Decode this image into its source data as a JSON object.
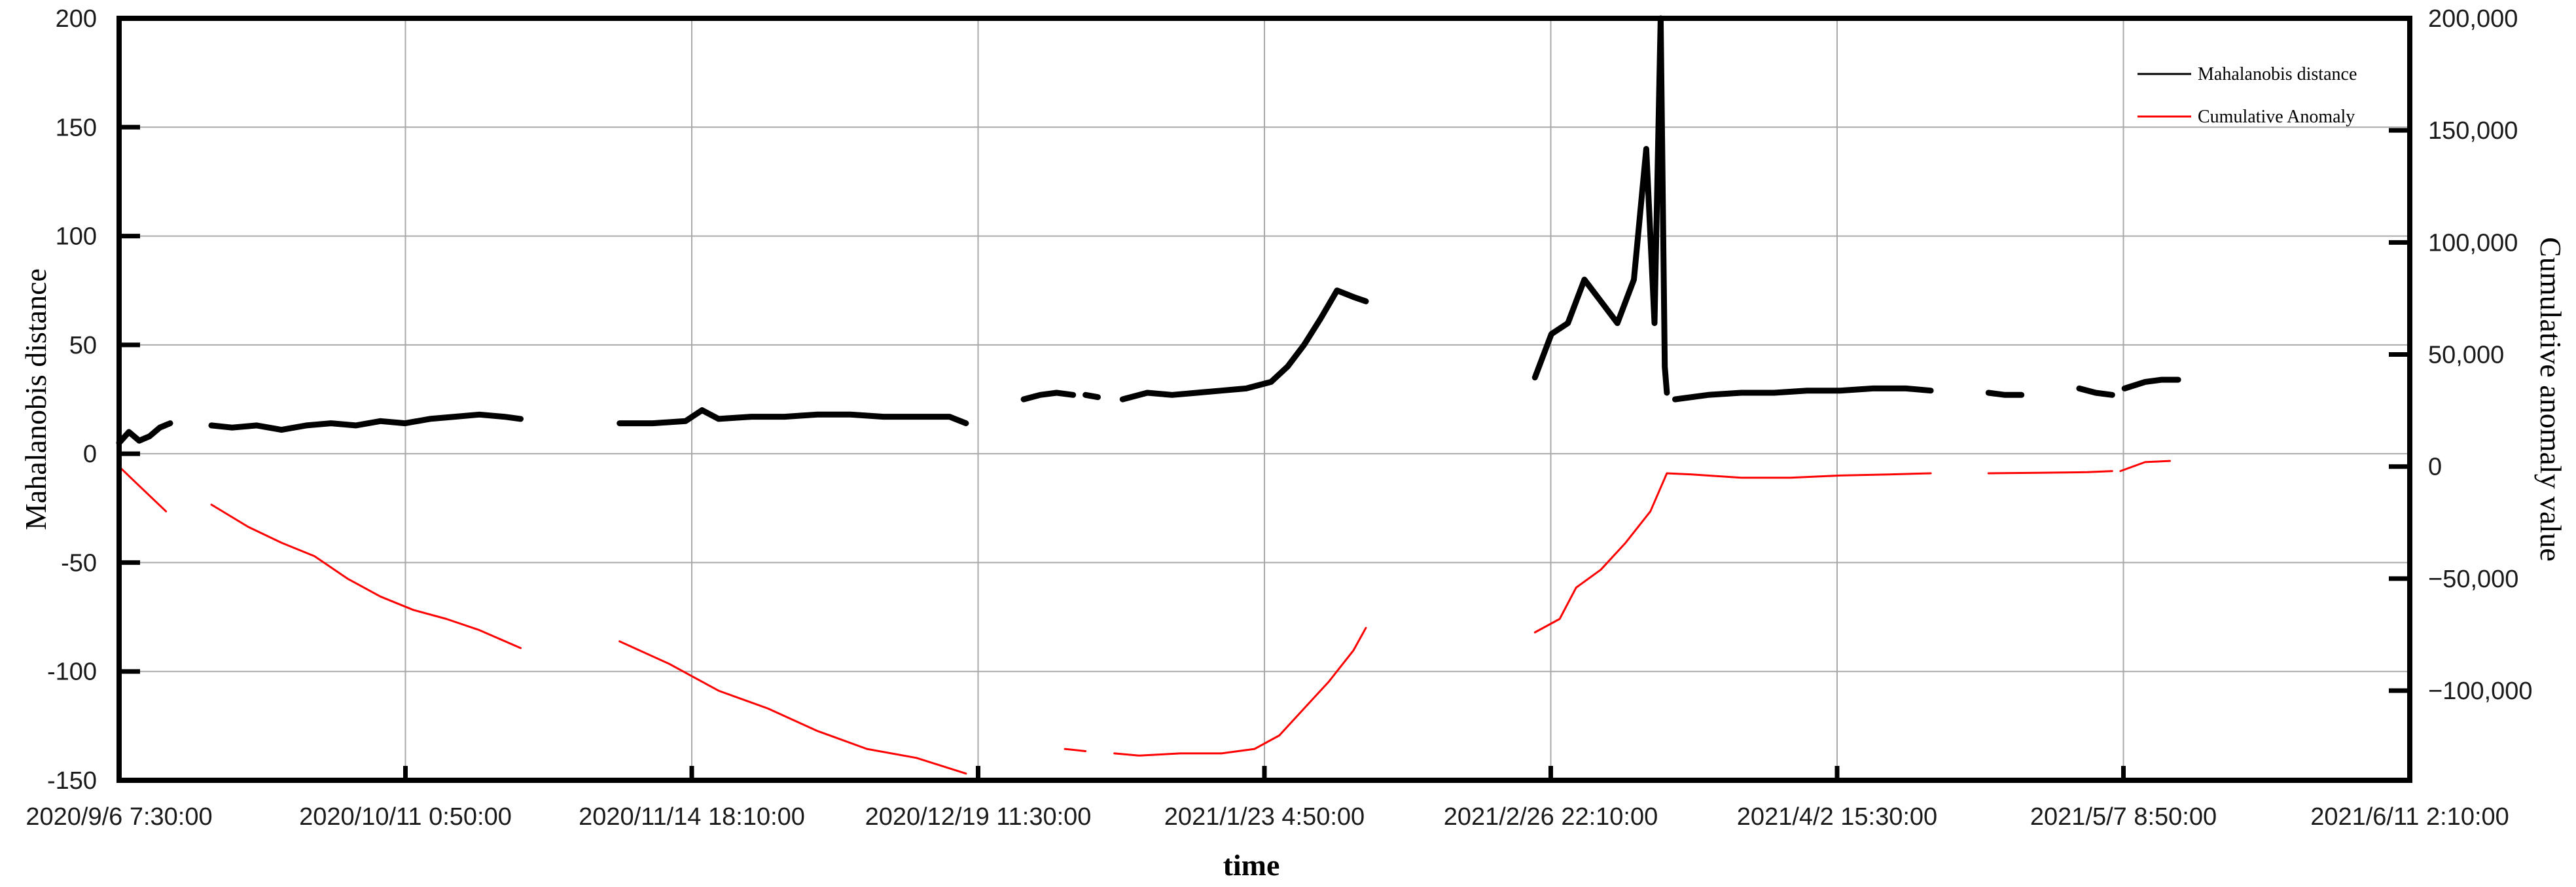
{
  "chart_data": {
    "type": "line",
    "title": "",
    "xlabel": "time",
    "ylabel": "Mahalanobis distance",
    "y2label": "Cumulative anomaly value",
    "x_ticks": [
      "2020/9/6  7:30:00",
      "2020/10/11  0:50:00",
      "2020/11/14  18:10:00",
      "2020/12/19  11:30:00",
      "2021/1/23  4:50:00",
      "2021/2/26  22:10:00",
      "2021/4/2  15:30:00",
      "2021/5/7  8:50:00",
      "2021/6/11  2:10:00"
    ],
    "xlim": [
      "2020-09-06 07:30",
      "2021-06-11 02:10"
    ],
    "ylim": [
      -150,
      200
    ],
    "y_ticks": [
      "200",
      "150",
      "100",
      "50",
      "0",
      "-50",
      "-100",
      "-150"
    ],
    "y2lim": [
      -140000,
      200000
    ],
    "y2_ticks": [
      "200,000",
      "150,000",
      "100,000",
      "50,000",
      "0",
      "−50,000",
      "−100,000"
    ],
    "legend": {
      "placement": "top-right",
      "entries": [
        "Mahalanobis distance",
        "Cumulative Anomaly"
      ]
    },
    "grid": true,
    "series": [
      {
        "name": "Mahalanobis distance",
        "axis": "left",
        "color": "#000000",
        "segments": [
          [
            [
              "2020-09-06 07:30",
              5
            ],
            [
              "2020-09-07 12:00",
              10
            ],
            [
              "2020-09-08 18:00",
              6
            ],
            [
              "2020-09-10 00:00",
              8
            ],
            [
              "2020-09-11 06:00",
              12
            ],
            [
              "2020-09-12 12:00",
              14
            ]
          ],
          [
            [
              "2020-09-17 12:00",
              13
            ],
            [
              "2020-09-20 00:00",
              12
            ],
            [
              "2020-09-23 00:00",
              13
            ],
            [
              "2020-09-26 00:00",
              11
            ],
            [
              "2020-09-29 00:00",
              13
            ],
            [
              "2020-10-02 00:00",
              14
            ],
            [
              "2020-10-05 00:00",
              13
            ],
            [
              "2020-10-08 00:00",
              15
            ],
            [
              "2020-10-11 00:00",
              14
            ],
            [
              "2020-10-14 00:00",
              16
            ],
            [
              "2020-10-17 00:00",
              17
            ],
            [
              "2020-10-20 00:00",
              18
            ],
            [
              "2020-10-23 00:00",
              17
            ],
            [
              "2020-10-25 00:00",
              16
            ]
          ],
          [
            [
              "2020-11-06 00:00",
              14
            ],
            [
              "2020-11-10 00:00",
              14
            ],
            [
              "2020-11-14 00:00",
              15
            ],
            [
              "2020-11-16 00:00",
              20
            ],
            [
              "2020-11-18 00:00",
              16
            ],
            [
              "2020-11-22 00:00",
              17
            ],
            [
              "2020-11-26 00:00",
              17
            ],
            [
              "2020-11-30 00:00",
              18
            ],
            [
              "2020-12-04 00:00",
              18
            ],
            [
              "2020-12-08 00:00",
              17
            ],
            [
              "2020-12-12 00:00",
              17
            ],
            [
              "2020-12-16 00:00",
              17
            ],
            [
              "2020-12-18 00:00",
              14
            ]
          ],
          [
            [
              "2020-12-25 00:00",
              25
            ],
            [
              "2020-12-27 00:00",
              27
            ],
            [
              "2020-12-29 00:00",
              28
            ],
            [
              "2020-12-31 00:00",
              27
            ]
          ],
          [
            [
              "2021-01-01 12:00",
              27
            ],
            [
              "2021-01-03 00:00",
              26
            ]
          ],
          [
            [
              "2021-01-06 00:00",
              25
            ],
            [
              "2021-01-09 00:00",
              28
            ],
            [
              "2021-01-12 00:00",
              27
            ],
            [
              "2021-01-15 00:00",
              28
            ],
            [
              "2021-01-18 00:00",
              29
            ],
            [
              "2021-01-21 00:00",
              30
            ],
            [
              "2021-01-24 00:00",
              33
            ],
            [
              "2021-01-26 00:00",
              40
            ],
            [
              "2021-01-28 00:00",
              50
            ],
            [
              "2021-01-30 00:00",
              62
            ],
            [
              "2021-02-01 00:00",
              75
            ],
            [
              "2021-02-03 00:00",
              72
            ],
            [
              "2021-02-04 12:00",
              70
            ]
          ],
          [
            [
              "2021-02-25 00:00",
              35
            ],
            [
              "2021-02-27 00:00",
              55
            ],
            [
              "2021-03-01 00:00",
              60
            ],
            [
              "2021-03-03 00:00",
              80
            ],
            [
              "2021-03-05 00:00",
              70
            ],
            [
              "2021-03-07 00:00",
              60
            ],
            [
              "2021-03-09 00:00",
              80
            ],
            [
              "2021-03-10 12:00",
              140
            ],
            [
              "2021-03-11 12:00",
              60
            ],
            [
              "2021-03-12 06:00",
              200
            ],
            [
              "2021-03-12 18:00",
              40
            ],
            [
              "2021-03-13 00:00",
              28
            ]
          ],
          [
            [
              "2021-03-14 00:00",
              25
            ],
            [
              "2021-03-18 00:00",
              27
            ],
            [
              "2021-03-22 00:00",
              28
            ],
            [
              "2021-03-26 00:00",
              28
            ],
            [
              "2021-03-30 00:00",
              29
            ],
            [
              "2021-04-03 00:00",
              29
            ],
            [
              "2021-04-07 00:00",
              30
            ],
            [
              "2021-04-11 00:00",
              30
            ],
            [
              "2021-04-14 00:00",
              29
            ]
          ],
          [
            [
              "2021-04-21 00:00",
              28
            ],
            [
              "2021-04-23 00:00",
              27
            ],
            [
              "2021-04-25 00:00",
              27
            ]
          ],
          [
            [
              "2021-05-02 00:00",
              30
            ],
            [
              "2021-05-04 00:00",
              28
            ],
            [
              "2021-05-06 00:00",
              27
            ]
          ],
          [
            [
              "2021-05-07 12:00",
              30
            ],
            [
              "2021-05-10 00:00",
              33
            ],
            [
              "2021-05-12 00:00",
              34
            ],
            [
              "2021-05-14 00:00",
              34
            ]
          ]
        ]
      },
      {
        "name": "Cumulative Anomaly",
        "axis": "right",
        "color": "#ff0000",
        "segments": [
          [
            [
              "2020-09-06 07:30",
              0
            ],
            [
              "2020-09-08 00:00",
              -6000
            ],
            [
              "2020-09-10 00:00",
              -13000
            ],
            [
              "2020-09-12 00:00",
              -20000
            ]
          ],
          [
            [
              "2020-09-17 12:00",
              -17000
            ],
            [
              "2020-09-22 00:00",
              -27000
            ],
            [
              "2020-09-26 00:00",
              -34000
            ],
            [
              "2020-09-30 00:00",
              -40000
            ],
            [
              "2020-10-04 00:00",
              -50000
            ],
            [
              "2020-10-08 00:00",
              -58000
            ],
            [
              "2020-10-12 00:00",
              -64000
            ],
            [
              "2020-10-16 00:00",
              -68000
            ],
            [
              "2020-10-20 00:00",
              -73000
            ],
            [
              "2020-10-25 00:00",
              -81000
            ]
          ],
          [
            [
              "2020-11-06 00:00",
              -78000
            ],
            [
              "2020-11-12 00:00",
              -88000
            ],
            [
              "2020-11-18 00:00",
              -100000
            ],
            [
              "2020-11-24 00:00",
              -108000
            ],
            [
              "2020-11-30 00:00",
              -118000
            ],
            [
              "2020-12-06 00:00",
              -126000
            ],
            [
              "2020-12-12 00:00",
              -130000
            ],
            [
              "2020-12-18 00:00",
              -137000
            ]
          ],
          [
            [
              "2020-12-30 00:00",
              -126000
            ],
            [
              "2021-01-01 12:00",
              -127000
            ]
          ],
          [
            [
              "2021-01-05 00:00",
              -128000
            ],
            [
              "2021-01-08 00:00",
              -129000
            ],
            [
              "2021-01-13 00:00",
              -128000
            ],
            [
              "2021-01-18 00:00",
              -128000
            ],
            [
              "2021-01-22 00:00",
              -126000
            ],
            [
              "2021-01-25 00:00",
              -120000
            ],
            [
              "2021-01-28 00:00",
              -108000
            ],
            [
              "2021-01-31 00:00",
              -96000
            ],
            [
              "2021-02-03 00:00",
              -82000
            ],
            [
              "2021-02-04 12:00",
              -72000
            ]
          ],
          [
            [
              "2021-02-25 00:00",
              -74000
            ],
            [
              "2021-02-28 00:00",
              -68000
            ],
            [
              "2021-03-02 00:00",
              -54000
            ],
            [
              "2021-03-05 00:00",
              -46000
            ],
            [
              "2021-03-08 00:00",
              -34000
            ],
            [
              "2021-03-11 00:00",
              -20000
            ],
            [
              "2021-03-13 00:00",
              -3000
            ],
            [
              "2021-03-16 00:00",
              -3500
            ],
            [
              "2021-03-22 00:00",
              -5000
            ],
            [
              "2021-03-28 00:00",
              -5000
            ],
            [
              "2021-04-03 00:00",
              -4000
            ],
            [
              "2021-04-09 00:00",
              -3500
            ],
            [
              "2021-04-14 00:00",
              -3000
            ]
          ],
          [
            [
              "2021-04-21 00:00",
              -3000
            ],
            [
              "2021-04-27 00:00",
              -2800
            ],
            [
              "2021-05-03 00:00",
              -2500
            ],
            [
              "2021-05-06 00:00",
              -2000
            ]
          ],
          [
            [
              "2021-05-07 00:00",
              -2000
            ],
            [
              "2021-05-10 00:00",
              2000
            ],
            [
              "2021-05-13 00:00",
              2500
            ]
          ]
        ]
      }
    ]
  }
}
